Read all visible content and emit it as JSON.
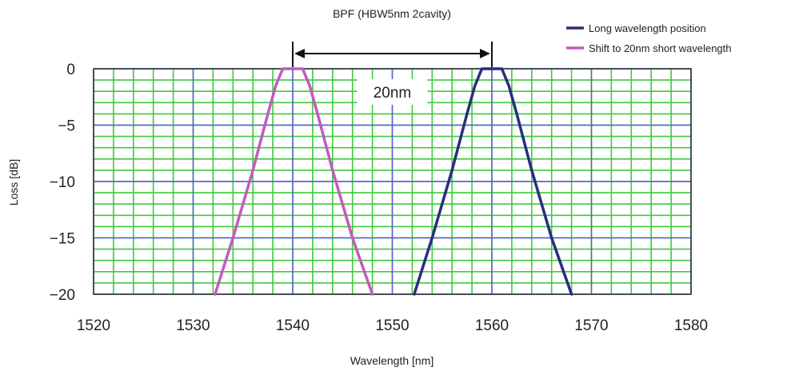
{
  "chart_data": {
    "type": "line",
    "title": "BPF (HBW5nm 2cavity)",
    "xlabel": "Wavelength [nm]",
    "ylabel": "Loss [dB]",
    "xlim": [
      1520,
      1580
    ],
    "ylim": [
      -20,
      0
    ],
    "x_ticks": [
      1520,
      1530,
      1540,
      1550,
      1560,
      1570,
      1580
    ],
    "y_ticks": [
      0,
      -5,
      -10,
      -15,
      -20
    ],
    "x_tick_labels": [
      "1520",
      "1530",
      "1540",
      "1550",
      "1560",
      "1570",
      "1580"
    ],
    "y_tick_labels": [
      "0",
      "−5",
      "−10",
      "−15",
      "−20"
    ],
    "grid": true,
    "grid_minor": {
      "x_step": 2,
      "y_step": 1,
      "color": "#3ec93e"
    },
    "grid_major_color": "#5a5ad8",
    "legend_position": "top-right",
    "series": [
      {
        "name": "Long wavelength position",
        "color": "#2a2d7e",
        "x": [
          1552.2,
          1554.0,
          1556.0,
          1557.5,
          1558.3,
          1559.0,
          1560.0,
          1561.0,
          1561.7,
          1562.5,
          1564.0,
          1566.0,
          1568.0
        ],
        "y": [
          -20,
          -15,
          -9,
          -4,
          -1.5,
          0,
          0,
          0,
          -1.5,
          -4,
          -9,
          -15,
          -20
        ]
      },
      {
        "name": "Shift to 20nm short wavelength",
        "color": "#c25bbd",
        "x": [
          1532.2,
          1534.0,
          1536.0,
          1537.5,
          1538.3,
          1539.0,
          1540.0,
          1541.0,
          1541.7,
          1542.5,
          1544.0,
          1546.0,
          1548.0
        ],
        "y": [
          -20,
          -15,
          -9,
          -4,
          -1.5,
          0,
          0,
          0,
          -1.5,
          -4,
          -9,
          -15,
          -20
        ]
      }
    ],
    "annotation": {
      "text": "20nm",
      "from_x": 1540,
      "to_x": 1560
    }
  }
}
